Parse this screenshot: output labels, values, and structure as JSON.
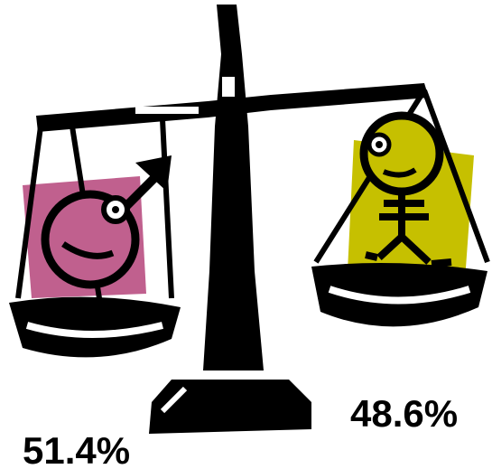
{
  "labels": {
    "female": "48.6%",
    "male": "51.4%"
  }
}
